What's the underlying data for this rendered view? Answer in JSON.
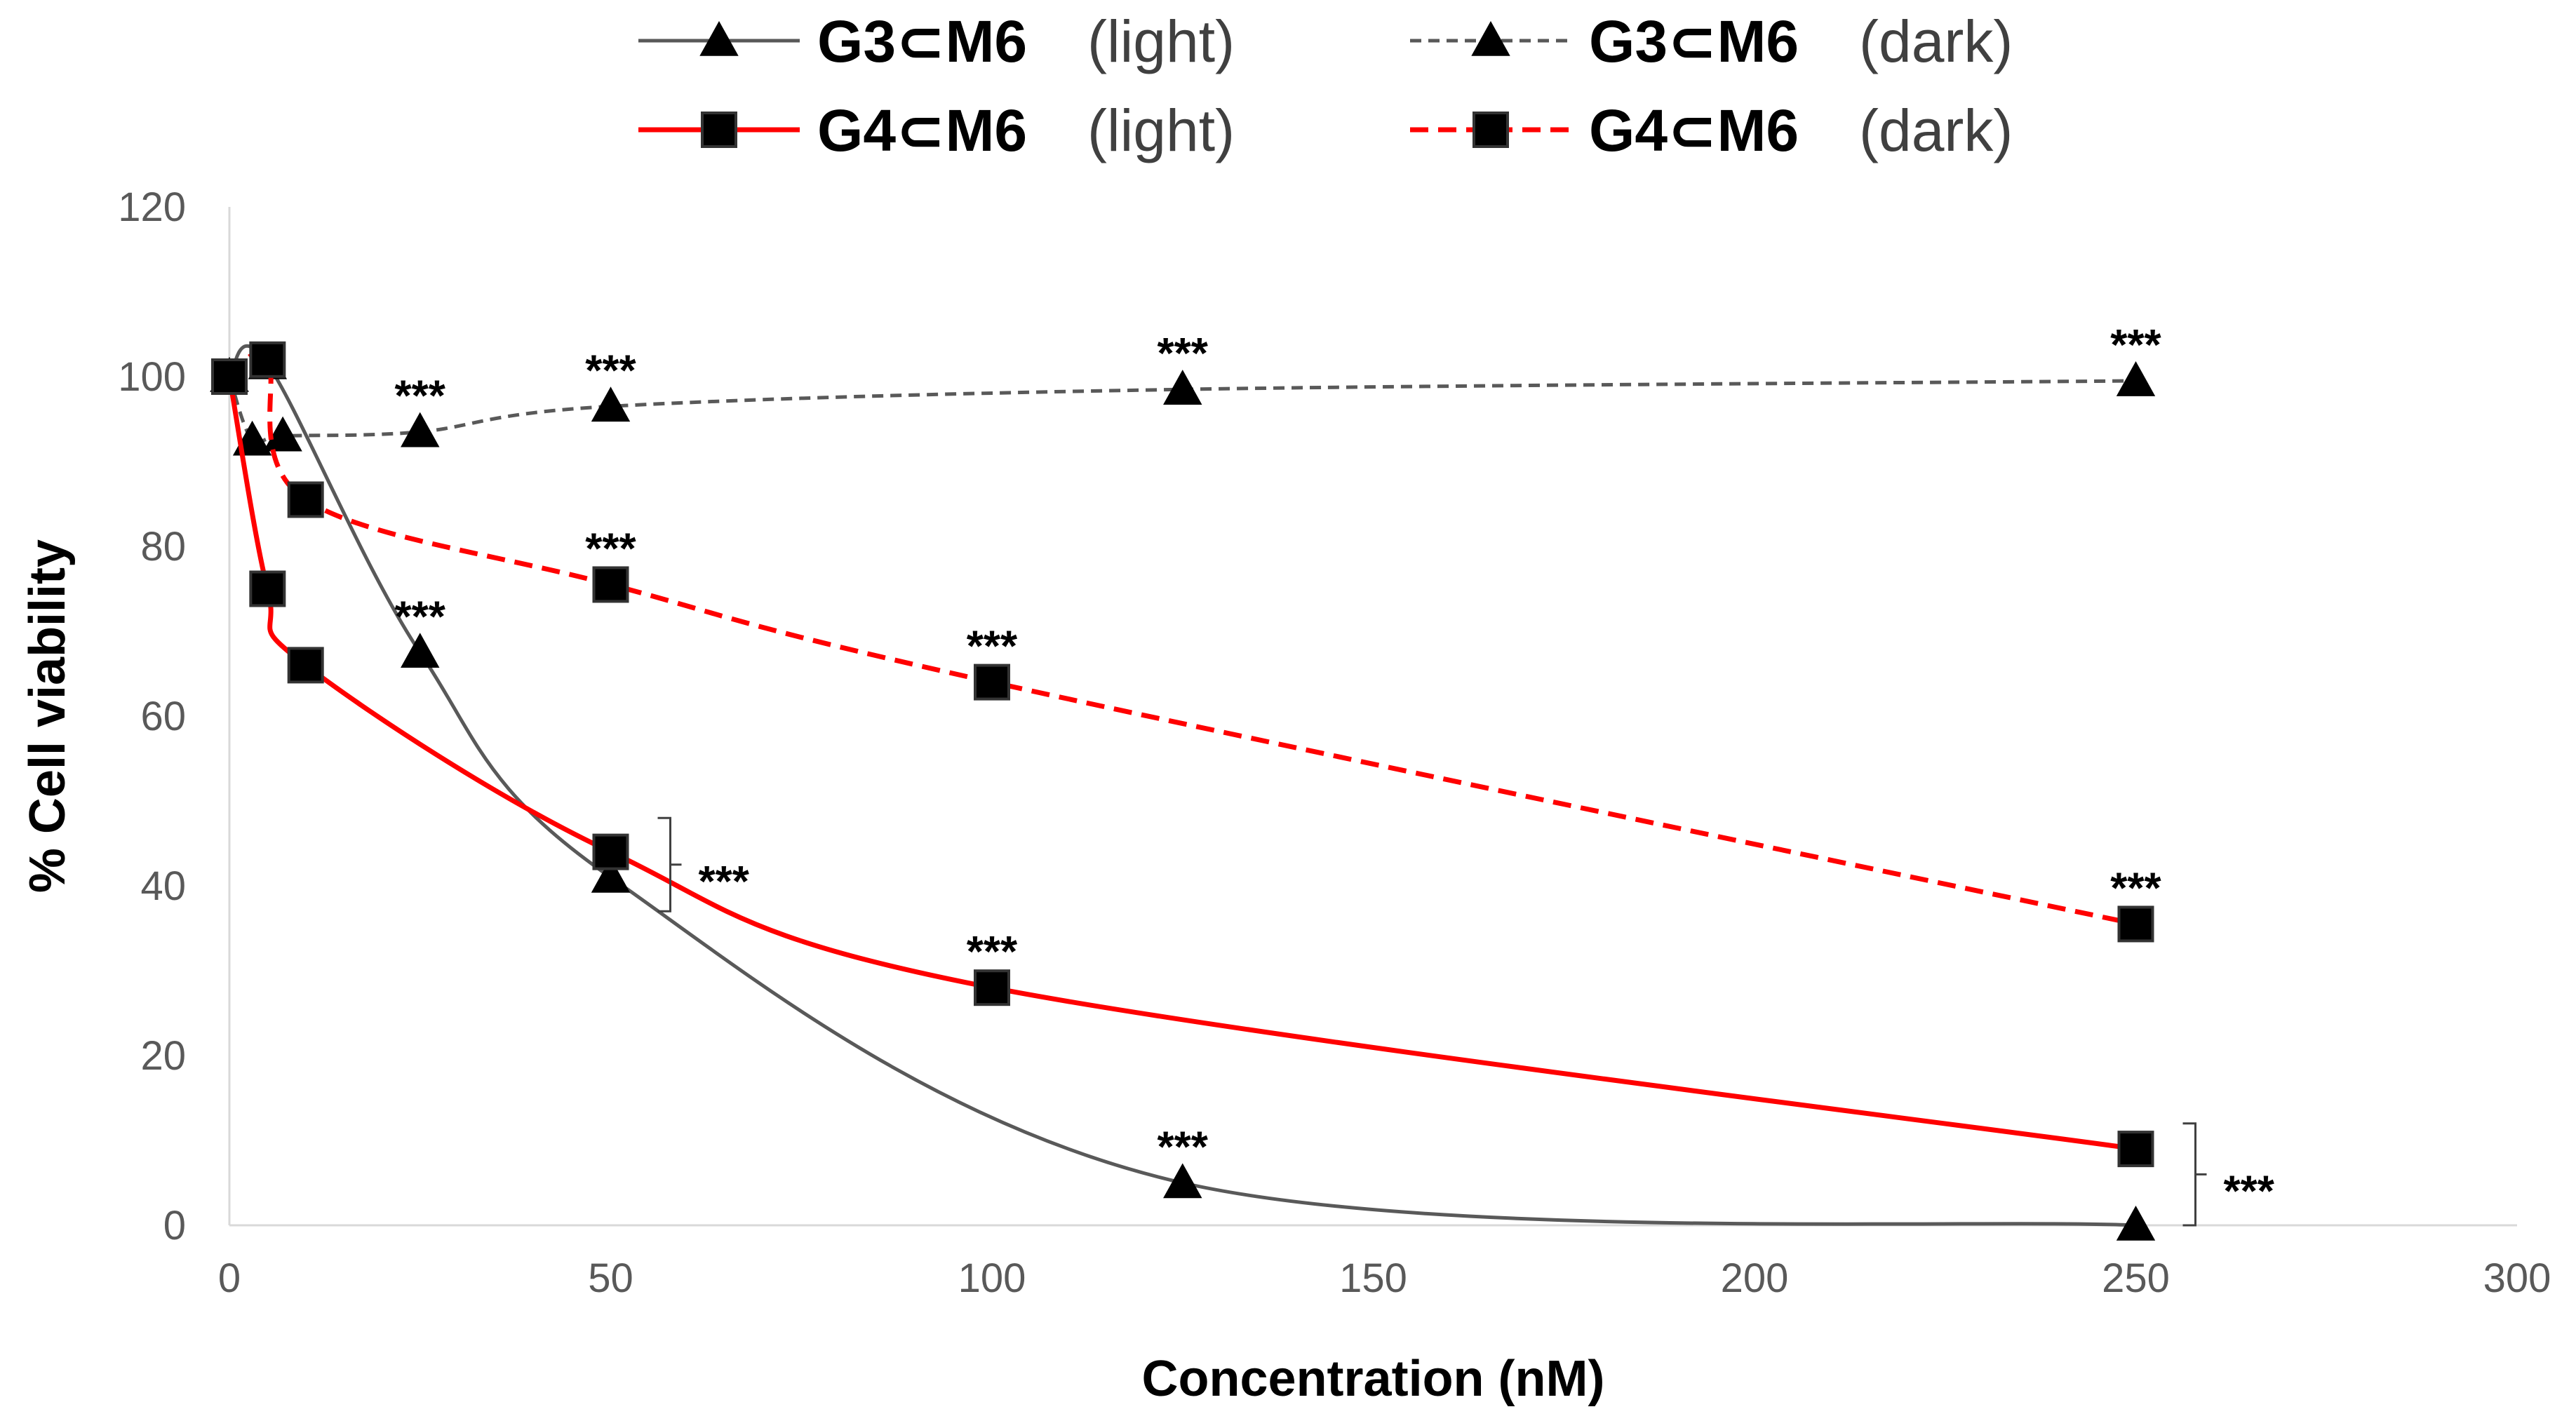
{
  "chart_data": {
    "type": "line",
    "xlabel": "Concentration (nM)",
    "ylabel": "% Cell viability",
    "xlim": [
      0,
      300
    ],
    "ylim": [
      0,
      120
    ],
    "xticks": [
      "0",
      "50",
      "100",
      "150",
      "200",
      "250",
      "300"
    ],
    "yticks": [
      "0",
      "20",
      "40",
      "60",
      "80",
      "100",
      "120"
    ],
    "grid": false,
    "legend_position": "top",
    "series": [
      {
        "name": "G3⊂M6",
        "condition": "(light)",
        "style": "solid",
        "color": "#595959",
        "marker": "triangle",
        "x": [
          0,
          5,
          25,
          50,
          125,
          250
        ],
        "y": [
          100,
          101.5,
          67.5,
          41,
          5,
          0
        ]
      },
      {
        "name": "G3⊂M6",
        "condition": "(dark)",
        "style": "dashed",
        "color": "#595959",
        "marker": "triangle",
        "x": [
          0,
          3,
          7,
          25,
          50,
          125,
          250
        ],
        "y": [
          100,
          92.5,
          93,
          93.5,
          96.5,
          98.5,
          99.5
        ]
      },
      {
        "name": "G4⊂M6",
        "condition": "(light)",
        "style": "solid",
        "color": "#ff0000",
        "marker": "square",
        "x": [
          0,
          5,
          10,
          50,
          100,
          250
        ],
        "y": [
          100,
          75,
          66,
          44,
          28,
          9
        ]
      },
      {
        "name": "G4⊂M6",
        "condition": "(dark)",
        "style": "dashed",
        "color": "#ff0000",
        "marker": "square",
        "x": [
          0,
          5,
          10,
          50,
          100,
          250
        ],
        "y": [
          100,
          102,
          85.5,
          75.5,
          64,
          35.5
        ]
      }
    ],
    "annotations": [
      {
        "text": "***",
        "x": 25,
        "y": 93.5,
        "position": "above"
      },
      {
        "text": "***",
        "x": 50,
        "y": 96.5,
        "position": "above"
      },
      {
        "text": "***",
        "x": 125,
        "y": 98.5,
        "position": "above"
      },
      {
        "text": "***",
        "x": 250,
        "y": 99.5,
        "position": "above"
      },
      {
        "text": "***",
        "x": 25,
        "y": 67.5,
        "position": "above"
      },
      {
        "text": "***",
        "x": 50,
        "y": 75.5,
        "position": "above"
      },
      {
        "text": "***",
        "x": 100,
        "y": 64,
        "position": "above"
      },
      {
        "text": "***",
        "x": 250,
        "y": 35.5,
        "position": "above"
      },
      {
        "text": "***",
        "x": 100,
        "y": 28,
        "position": "above"
      },
      {
        "text": "***",
        "x": 125,
        "y": 5,
        "position": "above"
      },
      {
        "text": "***",
        "x": 50,
        "y_range": [
          37,
          48
        ],
        "position": "bracket-right"
      },
      {
        "text": "***",
        "x": 250,
        "y_range": [
          0,
          12
        ],
        "position": "bracket-right"
      }
    ]
  }
}
